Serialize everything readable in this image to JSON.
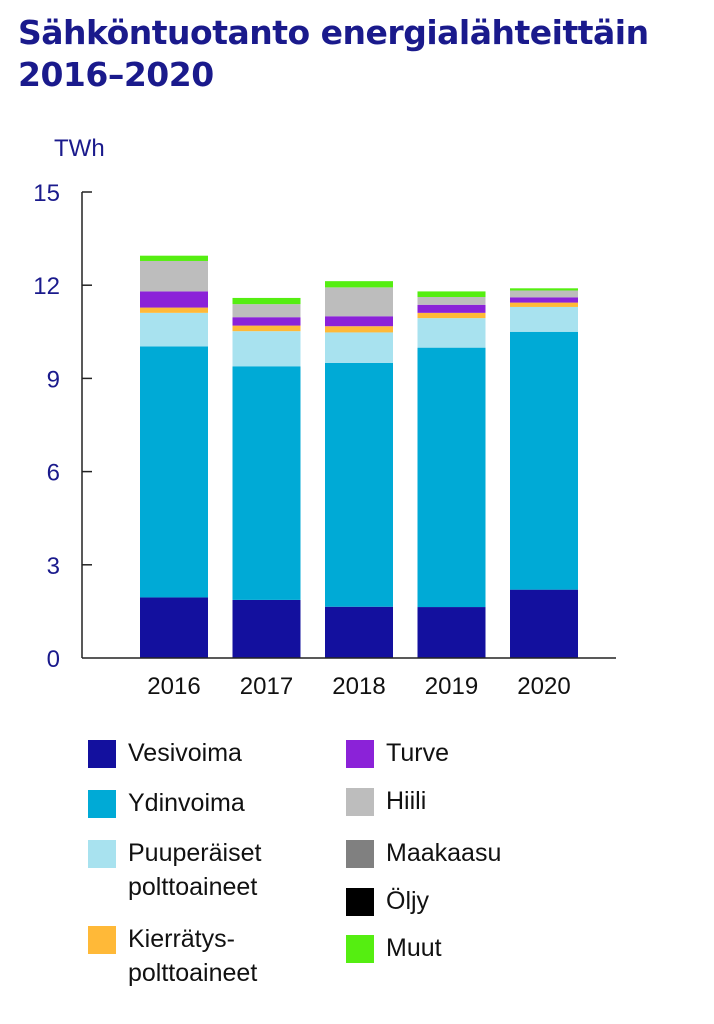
{
  "title": {
    "line1": "Sähköntuotanto energialähteittäin",
    "line2": "2016–2020"
  },
  "chart_data": {
    "type": "bar",
    "stacked": true,
    "unit_label": "TWh",
    "categories": [
      "2016",
      "2017",
      "2018",
      "2019",
      "2020"
    ],
    "ylim": [
      0,
      15
    ],
    "yticks": [
      "0",
      "3",
      "6",
      "9",
      "12",
      "15"
    ],
    "series": [
      {
        "name": "Vesivoima",
        "color": "#13109e",
        "values": [
          1.95,
          1.87,
          1.65,
          1.64,
          2.2
        ]
      },
      {
        "name": "Ydinvoima",
        "color": "#00aad6",
        "values": [
          8.08,
          7.52,
          7.85,
          8.35,
          8.3
        ]
      },
      {
        "name": "Puuperäiset polttoaineet",
        "color": "#a8e2ef",
        "values": [
          1.08,
          1.13,
          0.98,
          0.95,
          0.8
        ]
      },
      {
        "name": "Kierrätyspolttoaineet",
        "color": "#ffb938",
        "values": [
          0.17,
          0.18,
          0.2,
          0.17,
          0.14
        ]
      },
      {
        "name": "Turve",
        "color": "#8b22d8",
        "values": [
          0.52,
          0.27,
          0.32,
          0.26,
          0.17
        ]
      },
      {
        "name": "Hiili",
        "color": "#bdbdbd",
        "values": [
          0.98,
          0.42,
          0.93,
          0.25,
          0.22
        ]
      },
      {
        "name": "Maakaasu",
        "color": "#808080",
        "values": [
          0.0,
          0.0,
          0.0,
          0.0,
          0.0
        ]
      },
      {
        "name": "Öljy",
        "color": "#000000",
        "values": [
          0.0,
          0.0,
          0.0,
          0.0,
          0.0
        ]
      },
      {
        "name": "Muut",
        "color": "#55ee11",
        "values": [
          0.17,
          0.2,
          0.2,
          0.18,
          0.07
        ]
      }
    ],
    "grid": false
  },
  "legend": {
    "left": [
      {
        "lines": [
          "Vesivoima"
        ],
        "color": "#13109e"
      },
      {
        "lines": [
          "Ydinvoima"
        ],
        "color": "#00aad6"
      },
      {
        "lines": [
          "Puuperäiset",
          "polttoaineet"
        ],
        "color": "#a8e2ef"
      },
      {
        "lines": [
          "Kierrätys-",
          "polttoaineet"
        ],
        "color": "#ffb938"
      }
    ],
    "right": [
      {
        "lines": [
          "Turve"
        ],
        "color": "#8b22d8"
      },
      {
        "lines": [
          "Hiili"
        ],
        "color": "#bdbdbd"
      },
      {
        "lines": [
          "Maakaasu"
        ],
        "color": "#808080"
      },
      {
        "lines": [
          "Öljy"
        ],
        "color": "#000000"
      },
      {
        "lines": [
          "Muut"
        ],
        "color": "#55ee11"
      }
    ]
  }
}
